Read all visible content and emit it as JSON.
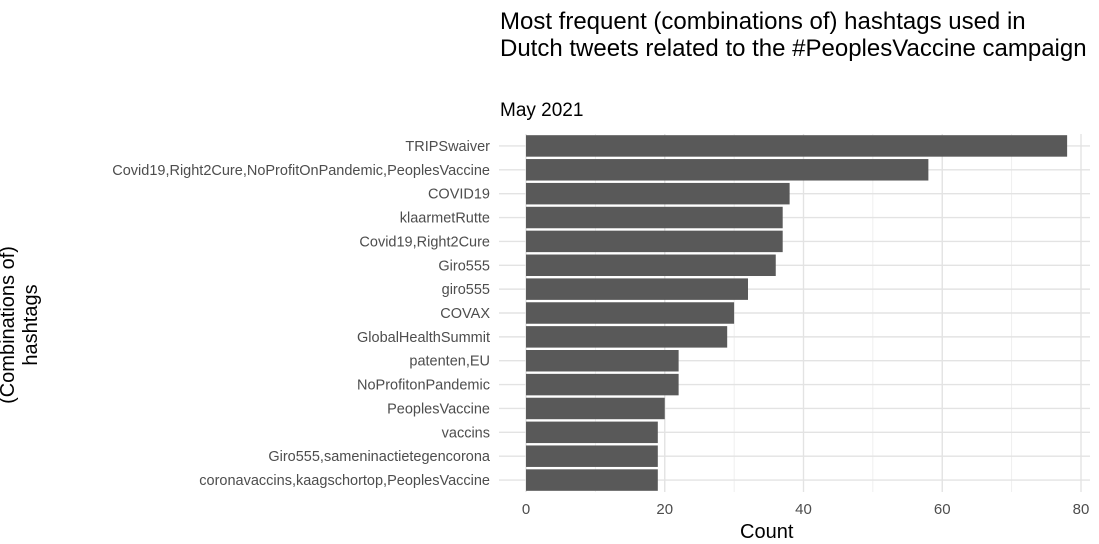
{
  "chart_data": {
    "type": "bar",
    "orientation": "horizontal",
    "title": "Most frequent (combinations of) hashtags used in Dutch tweets related to the #PeoplesVaccine campaign",
    "subtitle": "May 2021",
    "xlabel": "Count",
    "ylabel": "(Combinations of) hashtags",
    "xlim": [
      0,
      80
    ],
    "xticks": [
      0,
      20,
      40,
      60,
      80
    ],
    "grid": true,
    "bar_color": "#595959",
    "categories": [
      "TRIPSwaiver",
      "Covid19,Right2Cure,NoProfitOnPandemic,PeoplesVaccine",
      "COVID19",
      "klaarmetRutte",
      "Covid19,Right2Cure",
      "Giro555",
      "giro555",
      "COVAX",
      "GlobalHealthSummit",
      "patenten,EU",
      "NoProfitonPandemic",
      "PeoplesVaccine",
      "vaccins",
      "Giro555,sameninactietegencorona",
      "coronavaccins,kaagschortop,PeoplesVaccine"
    ],
    "values": [
      78,
      58,
      38,
      37,
      37,
      36,
      32,
      30,
      29,
      22,
      22,
      20,
      19,
      19,
      19
    ]
  }
}
